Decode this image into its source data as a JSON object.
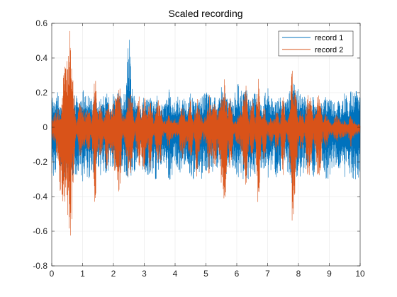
{
  "chart_data": {
    "type": "line",
    "title": "Scaled recording",
    "xlabel": "",
    "ylabel": "",
    "xlim": [
      0,
      10
    ],
    "ylim": [
      -0.8,
      0.6
    ],
    "xticks": [
      "0",
      "1",
      "2",
      "3",
      "4",
      "5",
      "6",
      "7",
      "8",
      "9",
      "10"
    ],
    "yticks": [
      "-0.8",
      "-0.6",
      "-0.4",
      "-0.2",
      "0",
      "0.2",
      "0.4",
      "0.6"
    ],
    "grid": true,
    "legend_position": "top-right",
    "series": [
      {
        "name": "record 1",
        "color": "#0072bd",
        "envelope_x": [
          0.0,
          0.1,
          0.2,
          0.3,
          0.4,
          0.5,
          0.6,
          0.7,
          0.8,
          0.9,
          1.0,
          1.1,
          1.2,
          1.3,
          1.4,
          1.5,
          1.6,
          1.7,
          1.8,
          1.9,
          2.0,
          2.1,
          2.2,
          2.3,
          2.4,
          2.5,
          2.6,
          2.7,
          2.8,
          2.9,
          3.0,
          3.1,
          3.2,
          3.3,
          3.4,
          3.5,
          3.6,
          3.7,
          3.8,
          3.9,
          4.0,
          4.1,
          4.2,
          4.3,
          4.4,
          4.5,
          4.6,
          4.7,
          4.8,
          4.9,
          5.0,
          5.1,
          5.2,
          5.3,
          5.4,
          5.5,
          5.6,
          5.7,
          5.8,
          5.9,
          6.0,
          6.1,
          6.2,
          6.3,
          6.4,
          6.5,
          6.6,
          6.7,
          6.8,
          6.9,
          7.0,
          7.1,
          7.2,
          7.3,
          7.4,
          7.5,
          7.6,
          7.7,
          7.8,
          7.9,
          8.0,
          8.1,
          8.2,
          8.3,
          8.4,
          8.5,
          8.6,
          8.7,
          8.8,
          8.9,
          9.0,
          9.1,
          9.2,
          9.3,
          9.4,
          9.5,
          9.6,
          9.7,
          9.8,
          9.9,
          10.0
        ],
        "envelope_max": [
          0.17,
          0.22,
          0.2,
          0.12,
          0.2,
          0.16,
          0.22,
          0.18,
          0.2,
          0.14,
          0.22,
          0.2,
          0.2,
          0.18,
          0.2,
          0.14,
          0.2,
          0.18,
          0.2,
          0.16,
          0.22,
          0.2,
          0.2,
          0.18,
          0.22,
          0.59,
          0.24,
          0.18,
          0.12,
          0.14,
          0.2,
          0.16,
          0.2,
          0.18,
          0.2,
          0.12,
          0.14,
          0.16,
          0.22,
          0.16,
          0.14,
          0.2,
          0.14,
          0.18,
          0.14,
          0.2,
          0.16,
          0.14,
          0.18,
          0.2,
          0.2,
          0.22,
          0.16,
          0.18,
          0.14,
          0.26,
          0.22,
          0.18,
          0.16,
          0.16,
          0.26,
          0.24,
          0.2,
          0.22,
          0.2,
          0.16,
          0.22,
          0.2,
          0.14,
          0.2,
          0.24,
          0.18,
          0.16,
          0.22,
          0.18,
          0.16,
          0.14,
          0.22,
          0.26,
          0.24,
          0.22,
          0.2,
          0.18,
          0.14,
          0.16,
          0.2,
          0.12,
          0.14,
          0.16,
          0.18,
          0.22,
          0.16,
          0.14,
          0.18,
          0.12,
          0.22,
          0.14,
          0.22,
          0.2,
          0.22,
          0.22
        ],
        "envelope_min": [
          -0.28,
          -0.3,
          -0.2,
          -0.24,
          -0.3,
          -0.26,
          -0.3,
          -0.3,
          -0.3,
          -0.24,
          -0.32,
          -0.28,
          -0.3,
          -0.26,
          -0.3,
          -0.24,
          -0.3,
          -0.26,
          -0.28,
          -0.24,
          -0.28,
          -0.26,
          -0.3,
          -0.26,
          -0.28,
          -0.3,
          -0.28,
          -0.26,
          -0.2,
          -0.22,
          -0.3,
          -0.28,
          -0.3,
          -0.26,
          -0.34,
          -0.22,
          -0.24,
          -0.28,
          -0.32,
          -0.28,
          -0.2,
          -0.28,
          -0.26,
          -0.24,
          -0.2,
          -0.3,
          -0.3,
          -0.24,
          -0.28,
          -0.32,
          -0.28,
          -0.3,
          -0.26,
          -0.28,
          -0.24,
          -0.3,
          -0.3,
          -0.26,
          -0.2,
          -0.26,
          -0.3,
          -0.28,
          -0.32,
          -0.28,
          -0.34,
          -0.24,
          -0.28,
          -0.26,
          -0.24,
          -0.3,
          -0.32,
          -0.28,
          -0.24,
          -0.3,
          -0.26,
          -0.22,
          -0.24,
          -0.3,
          -0.34,
          -0.3,
          -0.3,
          -0.28,
          -0.26,
          -0.22,
          -0.24,
          -0.3,
          -0.2,
          -0.22,
          -0.26,
          -0.3,
          -0.3,
          -0.24,
          -0.22,
          -0.28,
          -0.2,
          -0.3,
          -0.22,
          -0.3,
          -0.3,
          -0.3,
          -0.3
        ]
      },
      {
        "name": "record 2",
        "color": "#d95319",
        "envelope_x": [
          0.0,
          0.1,
          0.2,
          0.3,
          0.4,
          0.5,
          0.6,
          0.7,
          0.8,
          0.9,
          1.0,
          1.1,
          1.2,
          1.3,
          1.4,
          1.5,
          1.6,
          1.7,
          1.8,
          1.9,
          2.0,
          2.1,
          2.2,
          2.3,
          2.4,
          2.5,
          2.6,
          2.7,
          2.8,
          2.9,
          3.0,
          3.1,
          3.2,
          3.3,
          3.4,
          3.5,
          3.6,
          3.7,
          3.8,
          3.9,
          4.0,
          4.1,
          4.2,
          4.3,
          4.4,
          4.5,
          4.6,
          4.7,
          4.8,
          4.9,
          5.0,
          5.1,
          5.2,
          5.3,
          5.4,
          5.5,
          5.6,
          5.7,
          5.8,
          5.9,
          6.0,
          6.1,
          6.2,
          6.3,
          6.4,
          6.5,
          6.6,
          6.7,
          6.8,
          6.9,
          7.0,
          7.1,
          7.2,
          7.3,
          7.4,
          7.5,
          7.6,
          7.7,
          7.8,
          7.9,
          8.0,
          8.1,
          8.2,
          8.3,
          8.4,
          8.5,
          8.6,
          8.7,
          8.8,
          8.9,
          9.0,
          9.1,
          9.2,
          9.3,
          9.4,
          9.5,
          9.6,
          9.7,
          9.8,
          9.9,
          10.0
        ],
        "envelope_max": [
          0.04,
          0.08,
          0.12,
          0.06,
          0.38,
          0.4,
          0.58,
          0.24,
          0.02,
          0.14,
          0.12,
          0.08,
          0.12,
          0.04,
          0.36,
          0.08,
          0.14,
          0.06,
          0.18,
          0.1,
          0.14,
          0.2,
          0.28,
          0.06,
          0.1,
          0.24,
          0.16,
          0.02,
          0.22,
          0.1,
          0.2,
          0.08,
          0.18,
          0.04,
          0.12,
          0.2,
          0.04,
          0.04,
          0.1,
          0.04,
          0.06,
          0.02,
          0.14,
          0.1,
          0.06,
          0.16,
          0.02,
          0.2,
          0.1,
          0.04,
          0.08,
          0.2,
          0.12,
          0.16,
          0.08,
          0.24,
          0.28,
          0.1,
          0.2,
          0.02,
          0.06,
          0.08,
          0.14,
          0.24,
          0.04,
          0.18,
          0.06,
          0.3,
          0.06,
          0.14,
          0.02,
          0.08,
          0.04,
          0.12,
          0.02,
          0.22,
          0.04,
          0.08,
          0.4,
          0.26,
          0.06,
          0.12,
          0.04,
          0.22,
          0.18,
          0.04,
          0.2,
          0.2,
          0.04,
          0.1,
          0.04,
          0.02,
          0.08,
          0.06,
          0.04,
          0.04,
          0.02,
          0.08,
          0.04,
          0.02,
          0.02
        ],
        "envelope_min": [
          -0.06,
          -0.1,
          -0.2,
          -0.46,
          -0.42,
          -0.5,
          -0.77,
          -0.3,
          -0.04,
          -0.18,
          -0.18,
          -0.1,
          -0.16,
          -0.06,
          -0.5,
          -0.12,
          -0.2,
          -0.08,
          -0.28,
          -0.14,
          -0.22,
          -0.3,
          -0.4,
          -0.08,
          -0.18,
          -0.34,
          -0.24,
          -0.04,
          -0.3,
          -0.16,
          -0.28,
          -0.12,
          -0.26,
          -0.06,
          -0.18,
          -0.3,
          -0.06,
          -0.06,
          -0.14,
          -0.06,
          -0.08,
          -0.04,
          -0.2,
          -0.16,
          -0.1,
          -0.26,
          -0.04,
          -0.3,
          -0.14,
          -0.06,
          -0.12,
          -0.28,
          -0.18,
          -0.26,
          -0.12,
          -0.36,
          -0.58,
          -0.16,
          -0.3,
          -0.04,
          -0.1,
          -0.12,
          -0.2,
          -0.36,
          -0.06,
          -0.26,
          -0.1,
          -0.52,
          -0.08,
          -0.22,
          -0.04,
          -0.12,
          -0.06,
          -0.18,
          -0.04,
          -0.32,
          -0.06,
          -0.12,
          -0.68,
          -0.4,
          -0.1,
          -0.16,
          -0.06,
          -0.3,
          -0.26,
          -0.06,
          -0.28,
          -0.3,
          -0.06,
          -0.14,
          -0.06,
          -0.04,
          -0.1,
          -0.08,
          -0.06,
          -0.06,
          -0.04,
          -0.12,
          -0.06,
          -0.04,
          -0.04
        ]
      }
    ]
  }
}
